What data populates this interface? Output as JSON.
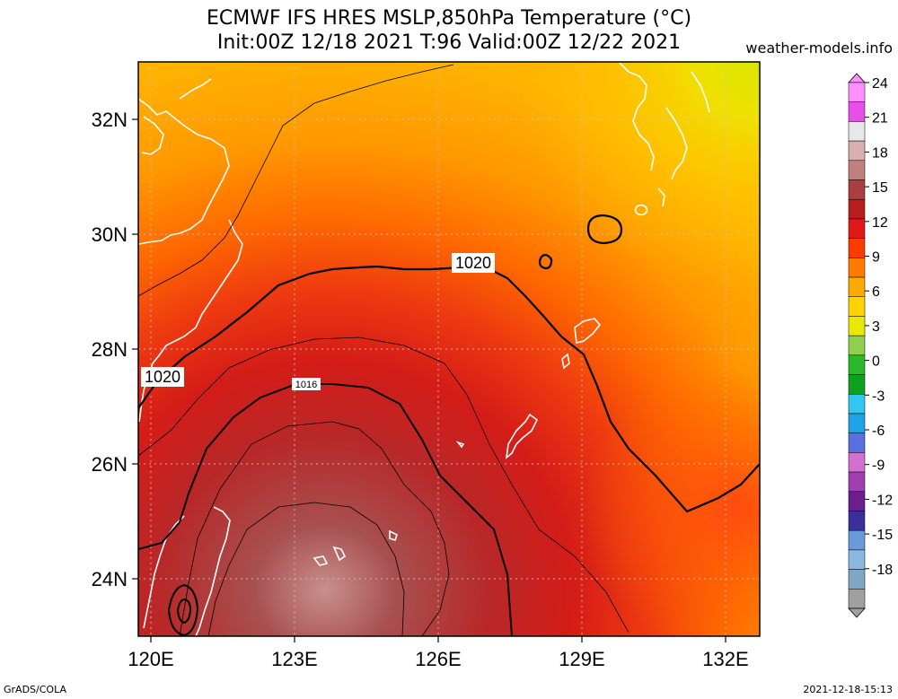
{
  "title": {
    "line1": "ECMWF IFS HRES MSLP,850hPa Temperature (°C)",
    "line2": "Init:00Z 12/18 2021 T:96 Valid:00Z 12/22 2021"
  },
  "credit": "weather-models.info",
  "footer": {
    "left": "GrADS/COLA",
    "right": "2021-12-18-15:13"
  },
  "map": {
    "lon_labels": [
      "120E",
      "123E",
      "126E",
      "129E",
      "132E"
    ],
    "lat_labels": [
      "32N",
      "30N",
      "28N",
      "26N",
      "24N"
    ],
    "isobar_labels": [
      "1020",
      "1020",
      "1016"
    ],
    "coastline_color": "#ffffff",
    "isobar_color": "#000000"
  },
  "colorbar": {
    "labels": [
      "24",
      "21",
      "18",
      "15",
      "12",
      "9",
      "6",
      "3",
      "0",
      "-3",
      "-6",
      "-9",
      "-12",
      "-15",
      "-18"
    ],
    "colors": [
      "#a0a0a0",
      "#7ea7c2",
      "#8ab8e0",
      "#6a9ad8",
      "#3b2f9a",
      "#6a1f8a",
      "#a040b0",
      "#d070d0",
      "#5a6fe0",
      "#1ea3e8",
      "#30c8f0",
      "#10a020",
      "#2cb82c",
      "#8fd14f",
      "#e8e800",
      "#ffd200",
      "#ffaa00",
      "#ff7a00",
      "#ff3a00",
      "#e01818",
      "#b81e1e",
      "#a84040",
      "#c08080",
      "#d8b0b0",
      "#e8e8e8",
      "#e84ee8",
      "#ff90ff"
    ]
  }
}
